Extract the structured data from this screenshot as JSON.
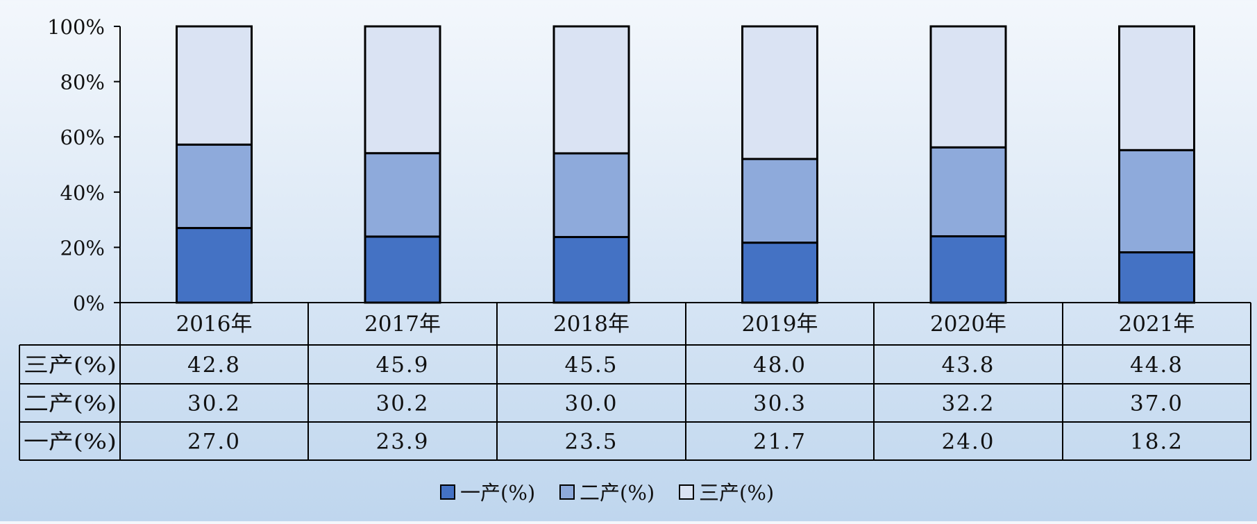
{
  "chart_data": {
    "type": "bar",
    "stacked": true,
    "percent_stacked": true,
    "categories": [
      "2016年",
      "2017年",
      "2018年",
      "2019年",
      "2020年",
      "2021年"
    ],
    "series": [
      {
        "name": "一产(%)",
        "values": [
          27.0,
          23.9,
          23.5,
          21.7,
          24.0,
          18.2
        ],
        "color": "#4472c4"
      },
      {
        "name": "二产(%)",
        "values": [
          30.2,
          30.2,
          30.0,
          30.3,
          32.2,
          37.0
        ],
        "color": "#8eaadb"
      },
      {
        "name": "三产(%)",
        "values": [
          42.8,
          45.9,
          45.5,
          48.0,
          43.8,
          44.8
        ],
        "color": "#dae3f3"
      }
    ],
    "table_rows": [
      {
        "label": "三产(%)",
        "values": [
          "42.8",
          "45.9",
          "45.5",
          "48.0",
          "43.8",
          "44.8"
        ]
      },
      {
        "label": "二产(%)",
        "values": [
          "30.2",
          "30.2",
          "30.0",
          "30.3",
          "32.2",
          "37.0"
        ]
      },
      {
        "label": "一产(%)",
        "values": [
          "27.0",
          "23.9",
          "23.5",
          "21.7",
          "24.0",
          "18.2"
        ]
      }
    ],
    "yticks": [
      "0%",
      "20%",
      "40%",
      "60%",
      "80%",
      "100%"
    ],
    "ylim": [
      0,
      100
    ],
    "legend": "bottom-center",
    "grid": false
  }
}
